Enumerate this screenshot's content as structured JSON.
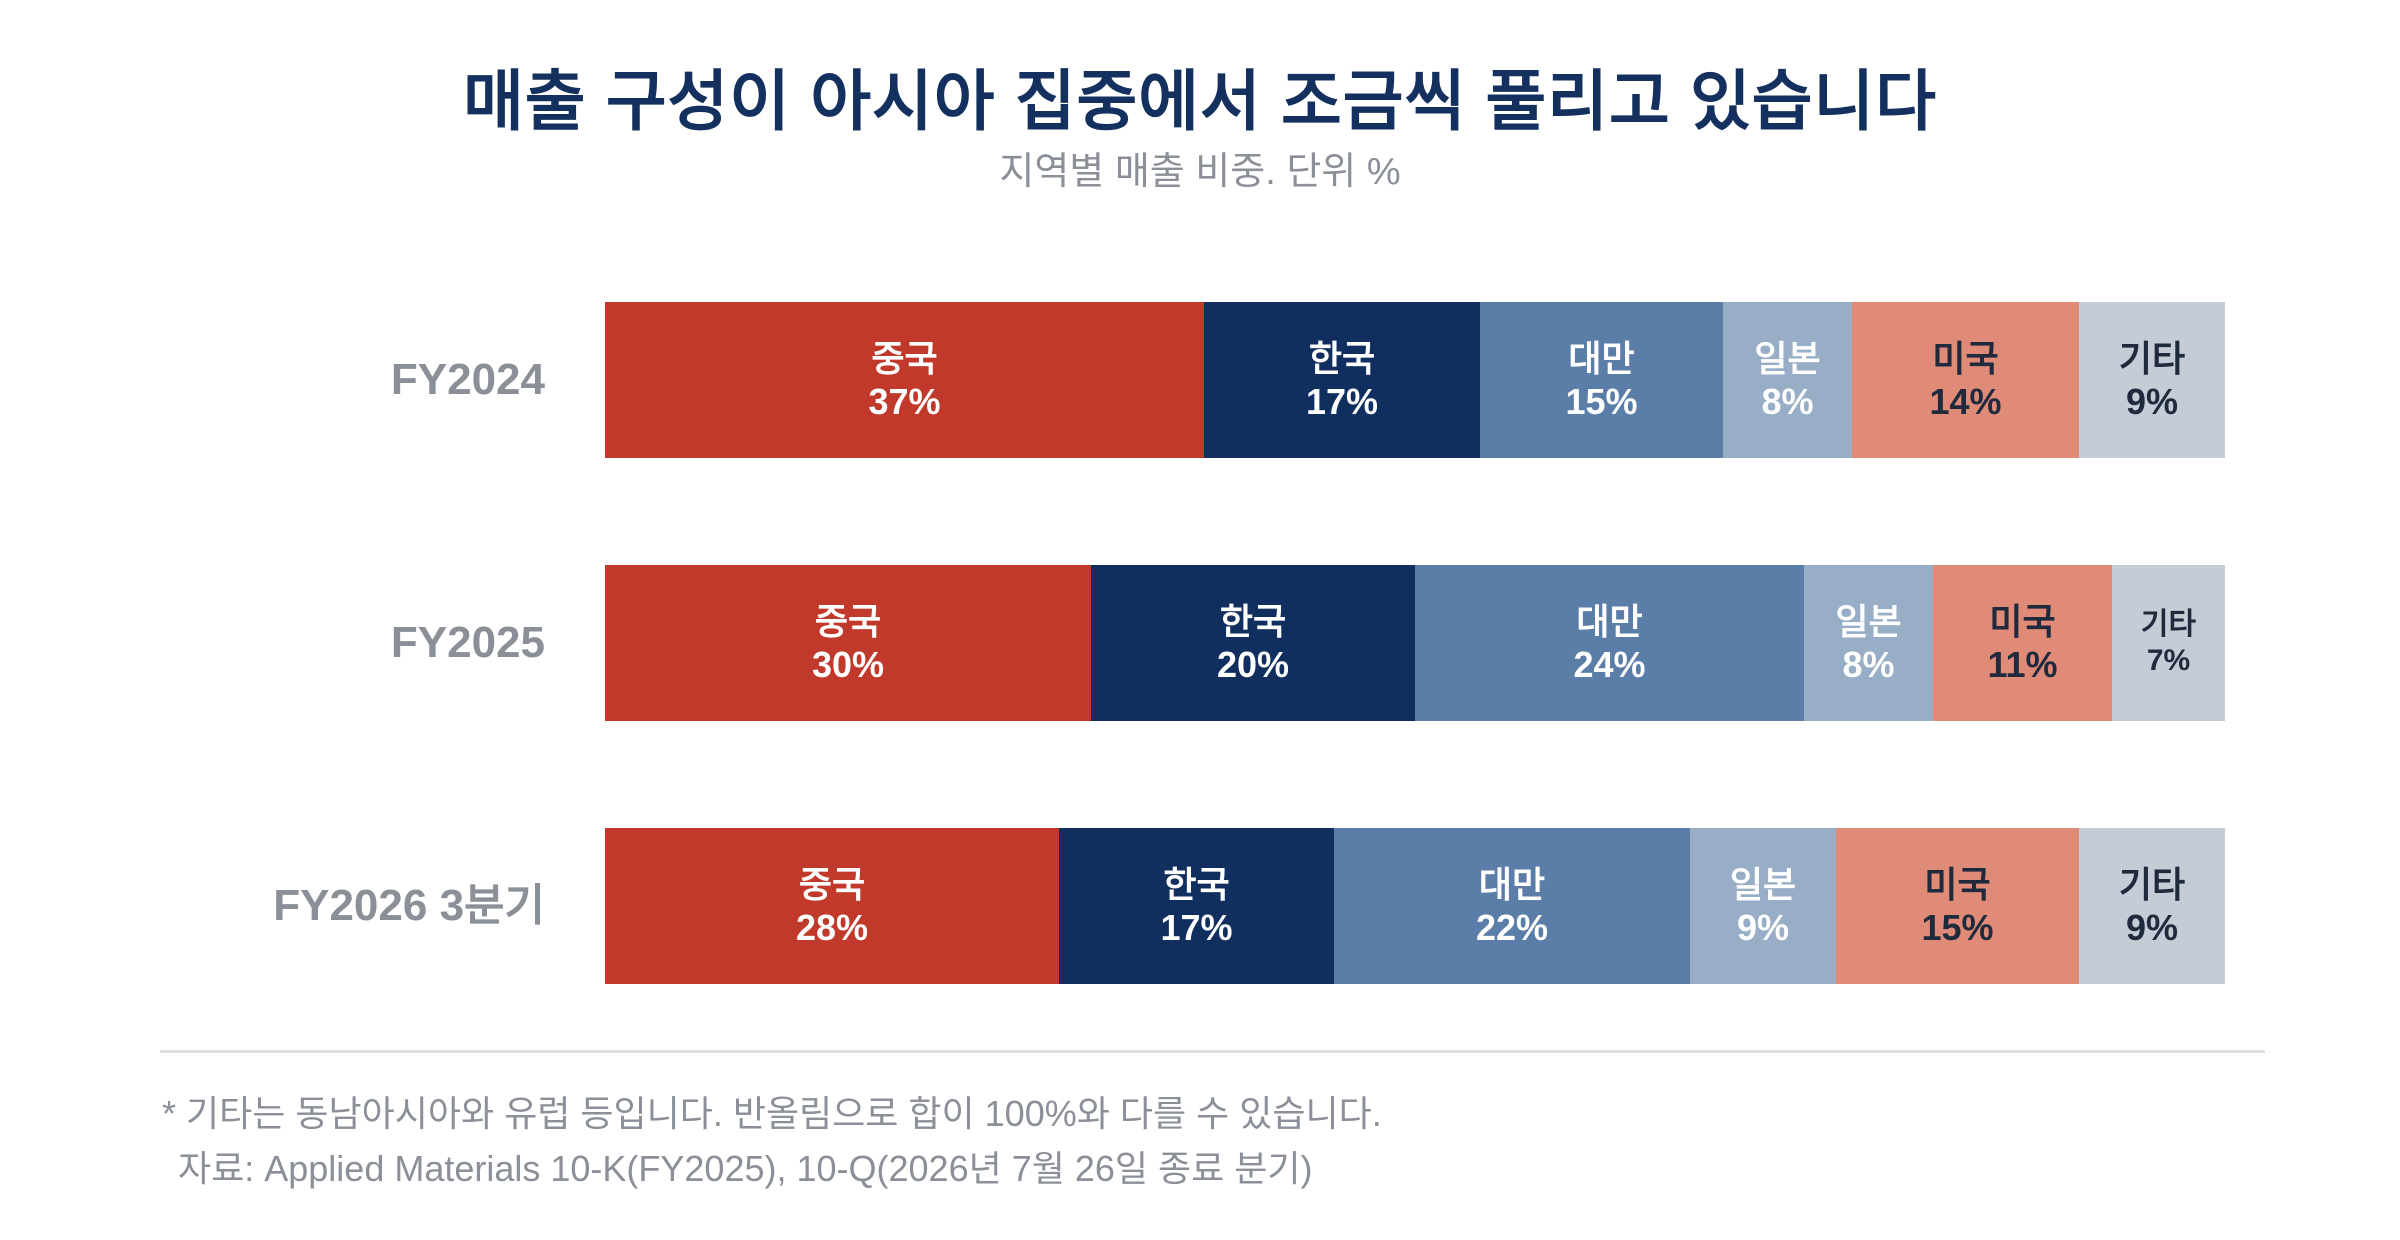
{
  "title": "매출 구성이 아시아 집중에서 조금씩 풀리고 있습니다",
  "subtitle": "지역별 매출 비중. 단위 %",
  "colors": {
    "중국": "#c0392b",
    "한국": "#112f5e",
    "대만": "#5b7ea8",
    "일본": "#97aec6",
    "미국": "#e08a78",
    "기타": "#c5ccd5"
  },
  "text_colors": {
    "중국": "#ffffff",
    "한국": "#ffffff",
    "대만": "#ffffff",
    "일본": "#ffffff",
    "미국": "#1f2a3d",
    "기타": "#1f2a3d"
  },
  "chart_data": {
    "type": "bar",
    "orientation": "horizontal",
    "stacked": true,
    "title": "매출 구성이 아시아 집중에서 조금씩 풀리고 있습니다",
    "subtitle": "지역별 매출 비중. 단위 %",
    "unit": "%",
    "categories": [
      "FY2024",
      "FY2025",
      "FY2026 3분기"
    ],
    "series": [
      {
        "name": "중국",
        "values": [
          37,
          30,
          28
        ]
      },
      {
        "name": "한국",
        "values": [
          17,
          20,
          17
        ]
      },
      {
        "name": "대만",
        "values": [
          15,
          24,
          22
        ]
      },
      {
        "name": "일본",
        "values": [
          8,
          8,
          9
        ]
      },
      {
        "name": "미국",
        "values": [
          14,
          11,
          15
        ]
      },
      {
        "name": "기타",
        "values": [
          9,
          7,
          9
        ]
      }
    ],
    "legend": "inline labels"
  },
  "footnote": {
    "note": "* 기타는 동남아시아와 유럽 등입니다. 반올림으로 합이 100%와 다를 수 있습니다.",
    "source": "자료: Applied Materials 10-K(FY2025), 10-Q(2026년 7월 26일 종료 분기)"
  }
}
